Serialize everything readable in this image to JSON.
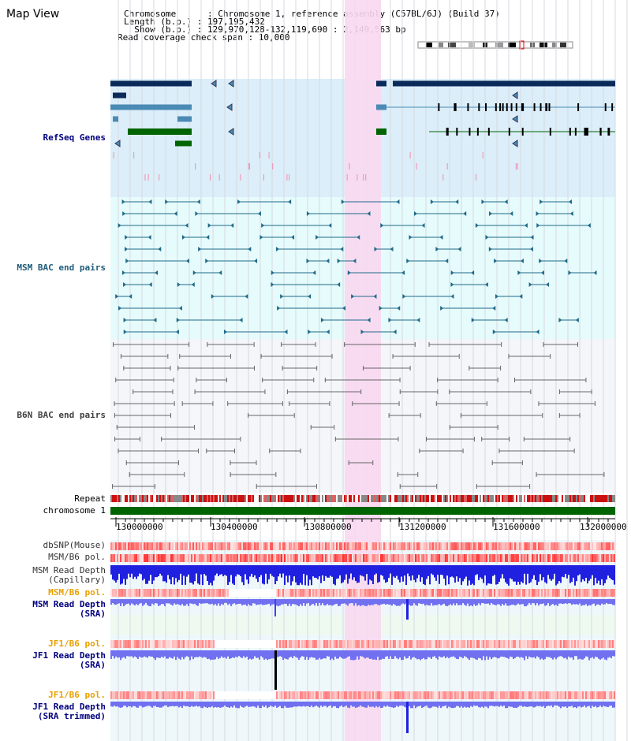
{
  "view": {
    "title": "Map View",
    "chromosome_line": "Chromosome      : Chromosome 1, reference assembly (C57BL/6J) (Build 37)",
    "length_line": "Length (b.p.) : 197,195,432",
    "show_line": "  Show (b.p.) : 129,970,128-132,119,690 : 2,149,563 bp",
    "coverage_line": "Read coverage check span : 10,000"
  },
  "tracks": {
    "refseq": "RefSeq Genes",
    "msm_bac": "MSM BAC end pairs",
    "b6n_bac": "B6N BAC end pairs",
    "repeat": "Repeat",
    "chromosome": "chromosome 1",
    "dbsnp": "dbSNP(Mouse)",
    "msm_b6_pol_1": "MSM/B6 pol.",
    "msm_read_depth_cap_1": "MSM Read Depth",
    "msm_read_depth_cap_2": "(Capillary)",
    "msm_b6_pol_2": "MSM/B6 pol.",
    "msm_read_depth_sra_1": "MSM Read Depth",
    "msm_read_depth_sra_2": "(SRA)",
    "jf1_b6_pol_1": "JF1/B6 pol.",
    "jf1_read_depth_1": "JF1 Read Depth",
    "jf1_read_depth_2": "(SRA)",
    "jf1_b6_pol_2": "JF1/B6 pol.",
    "jf1_read_depth_trim_1": "JF1 Read Depth",
    "jf1_read_depth_trim_2": "(SRA trimmed)"
  },
  "axis": {
    "ticks": [
      "130000000",
      "130400000",
      "130800000",
      "131200000",
      "131600000",
      "132000000"
    ]
  },
  "colors": {
    "refseq_bg": "#dbeef9",
    "msm_bg": "#e6fbfb",
    "b6n_bg": "#f4f6fa",
    "highlight": "#f8d8f0",
    "chromosome_bar": "#006400",
    "gene_navy": "#0a2a5a",
    "gene_steel": "#4a8ab5",
    "gene_green": "#006400",
    "bac_teal": "#1f6a8a",
    "bac_gray": "#666666",
    "depth_blue": "#2020e0",
    "depth_light": "#7070f0"
  }
}
